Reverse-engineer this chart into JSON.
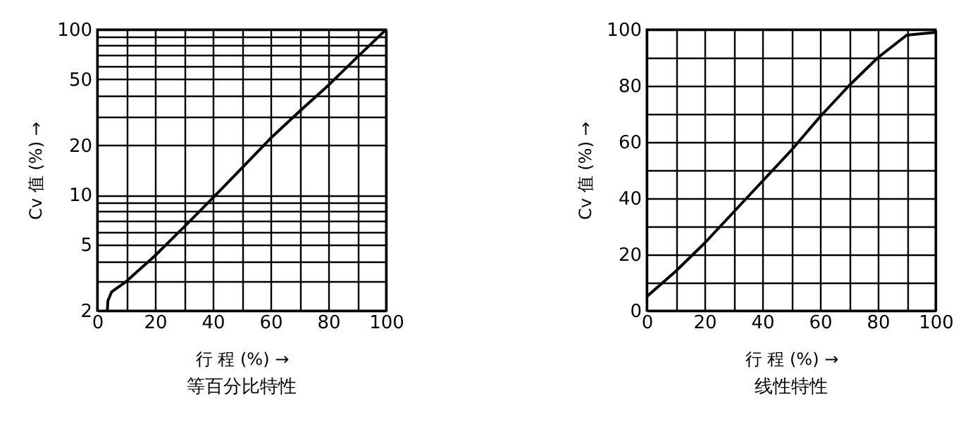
{
  "chart_data": [
    {
      "type": "line",
      "title": "等百分比特性",
      "xlabel": "行 程 (%) →",
      "ylabel": "Cv 值 (%) →",
      "log": "y",
      "grid": true,
      "x": [
        3.5,
        3.7,
        5,
        10,
        20,
        30,
        40,
        50,
        60,
        70,
        80,
        90,
        100
      ],
      "series": [
        {
          "color": "#000000",
          "values": [
            2,
            2.3,
            2.6,
            3.0,
            4.3,
            6.4,
            9.6,
            14.5,
            22,
            32,
            46,
            68,
            100
          ]
        }
      ],
      "xlim": [
        0,
        100
      ],
      "xticks": [
        0,
        {
          "value": 10,
          "label": null
        },
        20,
        {
          "value": 30,
          "label": null
        },
        40,
        {
          "value": 50,
          "label": null
        },
        60,
        {
          "value": 70,
          "label": null
        },
        80,
        {
          "value": 90,
          "label": null
        },
        100
      ],
      "ylim": [
        2,
        100
      ],
      "yticks": [
        2,
        {
          "value": 3,
          "label": null
        },
        {
          "value": 4,
          "label": null
        },
        5,
        {
          "value": 6,
          "label": null
        },
        {
          "value": 7,
          "label": null
        },
        {
          "value": 8,
          "label": null
        },
        {
          "value": 9,
          "label": null
        },
        10,
        20,
        {
          "value": 30,
          "label": null
        },
        {
          "value": 40,
          "label": null
        },
        50,
        {
          "value": 60,
          "label": null
        },
        {
          "value": 70,
          "label": null
        },
        {
          "value": 80,
          "label": null
        },
        {
          "value": 90,
          "label": null
        },
        100
      ]
    },
    {
      "type": "line",
      "title": "线性特性",
      "xlabel": "行 程 (%) →",
      "ylabel": "Cv 值 (%) →",
      "grid": true,
      "x": [
        0,
        10,
        20,
        30,
        40,
        50,
        60,
        70,
        80,
        90,
        100
      ],
      "series": [
        {
          "color": "#000000",
          "values": [
            5,
            14,
            24,
            35,
            46,
            57,
            69,
            80,
            90,
            98,
            99
          ]
        }
      ],
      "xlim": [
        0,
        100
      ],
      "xticks": [
        0,
        {
          "value": 10,
          "label": null
        },
        20,
        {
          "value": 30,
          "label": null
        },
        40,
        {
          "value": 50,
          "label": null
        },
        60,
        {
          "value": 70,
          "label": null
        },
        80,
        {
          "value": 90,
          "label": null
        },
        100
      ],
      "ylim": [
        0,
        100
      ],
      "yticks": [
        0,
        {
          "value": 10,
          "label": null
        },
        20,
        {
          "value": 30,
          "label": null
        },
        40,
        {
          "value": 50,
          "label": null
        },
        60,
        {
          "value": 70,
          "label": null
        },
        80,
        {
          "value": 90,
          "label": null
        },
        100
      ]
    }
  ]
}
